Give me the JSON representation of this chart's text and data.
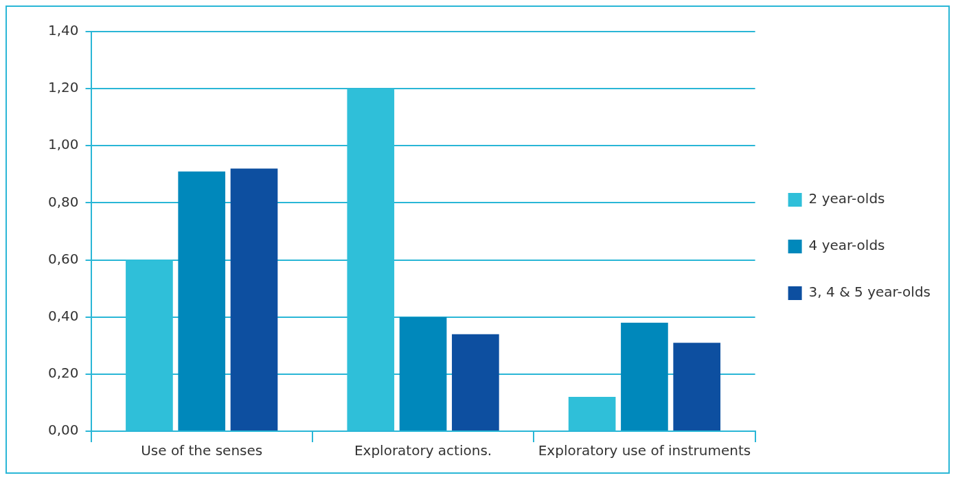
{
  "chart_data": {
    "type": "bar",
    "categories": [
      "Use of the senses",
      "Exploratory actions.",
      "Exploratory use of instruments"
    ],
    "series": [
      {
        "name": "2 year-olds",
        "color": "#2fbfd9",
        "values": [
          0.6,
          1.2,
          0.12
        ]
      },
      {
        "name": "4 year-olds",
        "color": "#0088bb",
        "values": [
          0.91,
          0.4,
          0.38
        ]
      },
      {
        "name": "3, 4 & 5 year-olds",
        "color": "#0d4fa0",
        "values": [
          0.92,
          0.34,
          0.31
        ]
      }
    ],
    "ylim": [
      0,
      1.4
    ],
    "yticks": [
      {
        "value": 0,
        "label": "0,00"
      },
      {
        "value": 0.2,
        "label": "0,20"
      },
      {
        "value": 0.4,
        "label": "0,40"
      },
      {
        "value": 0.6,
        "label": "0,60"
      },
      {
        "value": 0.8,
        "label": "0,80"
      },
      {
        "value": 1.0,
        "label": "1,00"
      },
      {
        "value": 1.2,
        "label": "1,20"
      },
      {
        "value": 1.4,
        "label": "1,40"
      }
    ],
    "grid": "y",
    "legend": "right"
  }
}
